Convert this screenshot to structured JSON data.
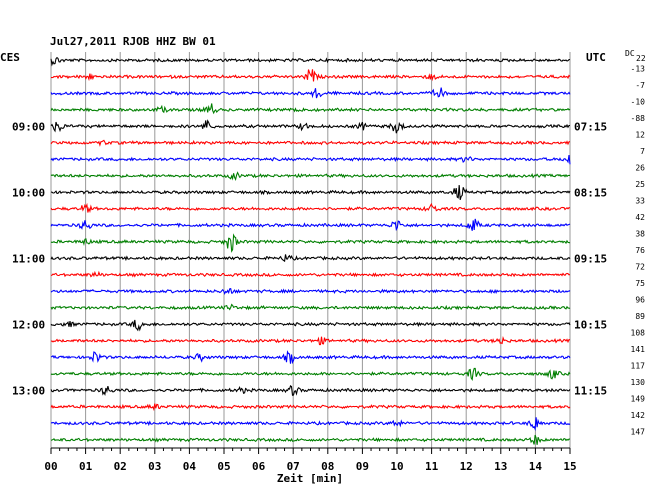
{
  "chart_data": {
    "type": "line",
    "title": "Jul27,2011   RJOB HHZ BW 01",
    "left_timezone": "CES",
    "right_timezone": "UTC",
    "dc_header_prefix": "DC",
    "dc_header_value": "22",
    "xlabel": "Zeit [min]",
    "xlim": [
      0,
      15
    ],
    "x_ticks": [
      "00",
      "01",
      "02",
      "03",
      "04",
      "05",
      "06",
      "07",
      "08",
      "09",
      "10",
      "11",
      "12",
      "13",
      "14",
      "15"
    ],
    "left_hour_labels": [
      {
        "trace": 4,
        "label": "09:00"
      },
      {
        "trace": 8,
        "label": "10:00"
      },
      {
        "trace": 12,
        "label": "11:00"
      },
      {
        "trace": 16,
        "label": "12:00"
      },
      {
        "trace": 20,
        "label": "13:00"
      }
    ],
    "right_time_labels": [
      {
        "trace": 4,
        "label": "07:15"
      },
      {
        "trace": 8,
        "label": "08:15"
      },
      {
        "trace": 12,
        "label": "09:15"
      },
      {
        "trace": 16,
        "label": "10:15"
      },
      {
        "trace": 20,
        "label": "11:15"
      }
    ],
    "trace_colors": [
      "#000000",
      "#ff0000",
      "#0000ff",
      "#007f00"
    ],
    "dc_offsets": [
      "-13",
      "-7",
      "-10",
      "-88",
      "12",
      "7",
      "26",
      "25",
      "33",
      "42",
      "38",
      "76",
      "72",
      "75",
      "96",
      "89",
      "108",
      "141",
      "117",
      "130",
      "149",
      "142",
      "147"
    ],
    "events": [
      [
        [
          0.1,
          0.5
        ]
      ],
      [
        [
          7.5,
          1.0
        ],
        [
          1.1,
          0.3
        ],
        [
          11.0,
          0.3
        ]
      ],
      [
        [
          7.7,
          0.6
        ],
        [
          11.2,
          0.8
        ]
      ],
      [
        [
          4.6,
          0.8
        ],
        [
          3.2,
          0.3
        ],
        [
          7.2,
          0.3
        ]
      ],
      [
        [
          0.2,
          0.7
        ],
        [
          4.5,
          0.7
        ],
        [
          10.0,
          0.9
        ],
        [
          7.3,
          0.4
        ],
        [
          9.0,
          0.4
        ]
      ],
      [
        [
          1.5,
          0.2
        ]
      ],
      [
        [
          15.0,
          0.9
        ],
        [
          12.0,
          0.3
        ]
      ],
      [
        [
          5.3,
          0.4
        ]
      ],
      [
        [
          11.8,
          1.0
        ]
      ],
      [
        [
          1.0,
          0.5
        ],
        [
          11.0,
          0.6
        ]
      ],
      [
        [
          1.0,
          0.7
        ],
        [
          10.0,
          0.7
        ],
        [
          12.2,
          0.9
        ]
      ],
      [
        [
          5.2,
          1.3
        ],
        [
          1.0,
          0.3
        ]
      ],
      [
        [
          6.8,
          0.4
        ]
      ],
      [
        [
          1.3,
          0.3
        ]
      ],
      [
        [
          5.1,
          0.4
        ]
      ],
      [
        [
          5.2,
          0.3
        ]
      ],
      [
        [
          2.5,
          0.7
        ],
        [
          0.5,
          0.3
        ]
      ],
      [
        [
          7.8,
          0.4
        ],
        [
          13.0,
          0.4
        ]
      ],
      [
        [
          1.3,
          0.7
        ],
        [
          6.9,
          0.7
        ],
        [
          4.3,
          0.4
        ]
      ],
      [
        [
          12.2,
          0.7
        ],
        [
          14.5,
          0.6
        ]
      ],
      [
        [
          1.6,
          0.6
        ],
        [
          7.0,
          0.6
        ],
        [
          5.5,
          0.3
        ]
      ],
      [
        [
          3.0,
          0.3
        ]
      ],
      [
        [
          14.0,
          0.9
        ],
        [
          10.0,
          0.4
        ]
      ],
      [
        [
          14.0,
          0.6
        ]
      ]
    ]
  }
}
